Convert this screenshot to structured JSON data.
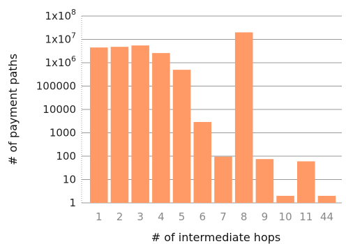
{
  "chart_data": {
    "type": "bar",
    "title": "",
    "xlabel": "# of intermediate hops",
    "ylabel": "# of payment paths",
    "yscale": "log",
    "ylim": [
      1,
      100000000
    ],
    "grid": "horizontal",
    "bar_color": "#ff9966",
    "grid_color": "#999999",
    "categories": [
      "1",
      "2",
      "3",
      "4",
      "5",
      "6",
      "7",
      "8",
      "9",
      "10",
      "11",
      "44"
    ],
    "values": [
      4500000,
      4800000,
      5500000,
      2600000,
      500000,
      2900,
      95,
      20000000,
      75,
      2,
      60,
      2
    ],
    "y_ticks": [
      {
        "value": 1,
        "label": "1"
      },
      {
        "value": 10,
        "label": "10"
      },
      {
        "value": 100,
        "label": "100"
      },
      {
        "value": 1000,
        "label": "1000"
      },
      {
        "value": 10000,
        "label": "10000"
      },
      {
        "value": 100000,
        "label": "100000"
      },
      {
        "value": 1000000,
        "base": "1x10",
        "exp": "6"
      },
      {
        "value": 10000000,
        "base": "1x10",
        "exp": "7"
      },
      {
        "value": 100000000,
        "base": "1x10",
        "exp": "8"
      }
    ]
  }
}
